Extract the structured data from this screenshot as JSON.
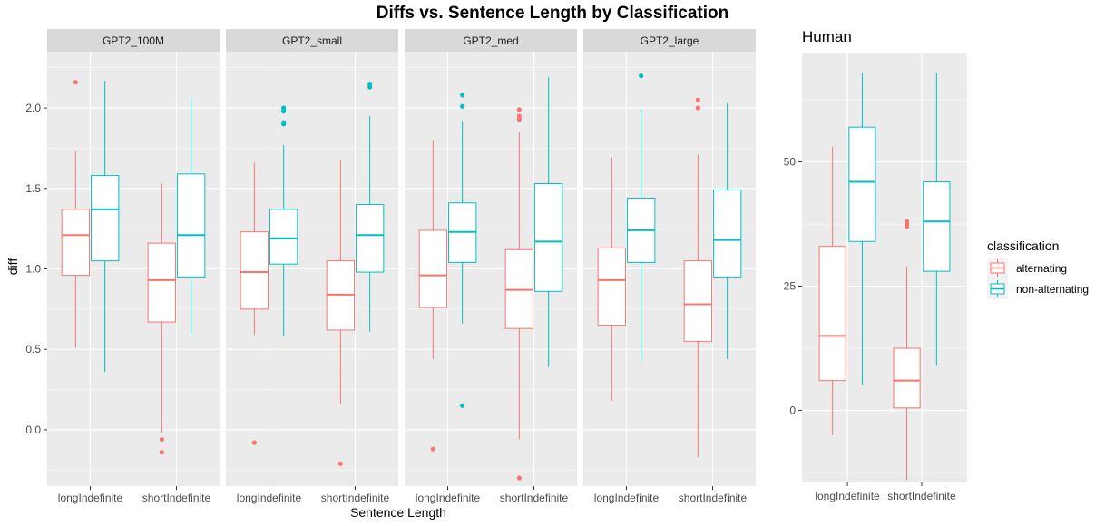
{
  "colors": {
    "alternating": "#F8766D",
    "non-alternating": "#00BFC4",
    "panel_bg": "#EBEBEB",
    "strip_bg": "#D9D9D9",
    "grid": "#FFFFFF"
  },
  "chart_data": [
    {
      "type": "boxplot",
      "title": "Diffs vs. Sentence Length by Classification",
      "xlabel": "Sentence Length",
      "ylabel": "diff",
      "ylim": [
        -0.35,
        2.35
      ],
      "yticks": [
        "0.0",
        "0.5",
        "1.0",
        "1.5",
        "2.0"
      ],
      "categories": [
        "longIndefinite",
        "shortIndefinite"
      ],
      "facets": [
        {
          "name": "GPT2_100M",
          "boxes": [
            {
              "category": "longIndefinite",
              "series": "alternating",
              "min": 0.51,
              "q1": 0.96,
              "median": 1.21,
              "q3": 1.37,
              "max": 1.73,
              "outliers": [
                2.16
              ]
            },
            {
              "category": "longIndefinite",
              "series": "non-alternating",
              "min": 0.36,
              "q1": 1.05,
              "median": 1.37,
              "q3": 1.58,
              "max": 2.17,
              "outliers": []
            },
            {
              "category": "shortIndefinite",
              "series": "alternating",
              "min": -0.02,
              "q1": 0.67,
              "median": 0.93,
              "q3": 1.16,
              "max": 1.53,
              "outliers": [
                -0.06,
                -0.14
              ]
            },
            {
              "category": "shortIndefinite",
              "series": "non-alternating",
              "min": 0.59,
              "q1": 0.95,
              "median": 1.21,
              "q3": 1.59,
              "max": 2.06,
              "outliers": []
            }
          ]
        },
        {
          "name": "GPT2_small",
          "boxes": [
            {
              "category": "longIndefinite",
              "series": "alternating",
              "min": 0.59,
              "q1": 0.75,
              "median": 0.98,
              "q3": 1.23,
              "max": 1.66,
              "outliers": [
                -0.08
              ]
            },
            {
              "category": "longIndefinite",
              "series": "non-alternating",
              "min": 0.58,
              "q1": 1.03,
              "median": 1.19,
              "q3": 1.37,
              "max": 1.77,
              "outliers": [
                1.9,
                1.91,
                1.98,
                2.0
              ]
            },
            {
              "category": "shortIndefinite",
              "series": "alternating",
              "min": 0.16,
              "q1": 0.62,
              "median": 0.84,
              "q3": 1.05,
              "max": 1.68,
              "outliers": [
                -0.21
              ]
            },
            {
              "category": "shortIndefinite",
              "series": "non-alternating",
              "min": 0.61,
              "q1": 0.98,
              "median": 1.21,
              "q3": 1.4,
              "max": 1.95,
              "outliers": [
                2.13,
                2.15
              ]
            }
          ]
        },
        {
          "name": "GPT2_med",
          "boxes": [
            {
              "category": "longIndefinite",
              "series": "alternating",
              "min": 0.44,
              "q1": 0.76,
              "median": 0.96,
              "q3": 1.24,
              "max": 1.8,
              "outliers": [
                -0.12
              ]
            },
            {
              "category": "longIndefinite",
              "series": "non-alternating",
              "min": 0.66,
              "q1": 1.04,
              "median": 1.23,
              "q3": 1.41,
              "max": 1.92,
              "outliers": [
                2.01,
                2.08,
                0.15
              ]
            },
            {
              "category": "shortIndefinite",
              "series": "alternating",
              "min": -0.06,
              "q1": 0.63,
              "median": 0.87,
              "q3": 1.12,
              "max": 1.85,
              "outliers": [
                1.93,
                1.95,
                1.99,
                -0.3
              ]
            },
            {
              "category": "shortIndefinite",
              "series": "non-alternating",
              "min": 0.39,
              "q1": 0.86,
              "median": 1.17,
              "q3": 1.53,
              "max": 2.19,
              "outliers": []
            }
          ]
        },
        {
          "name": "GPT2_large",
          "boxes": [
            {
              "category": "longIndefinite",
              "series": "alternating",
              "min": 0.18,
              "q1": 0.65,
              "median": 0.93,
              "q3": 1.13,
              "max": 1.69,
              "outliers": []
            },
            {
              "category": "longIndefinite",
              "series": "non-alternating",
              "min": 0.43,
              "q1": 1.04,
              "median": 1.24,
              "q3": 1.44,
              "max": 1.99,
              "outliers": [
                2.2
              ]
            },
            {
              "category": "shortIndefinite",
              "series": "alternating",
              "min": -0.17,
              "q1": 0.55,
              "median": 0.78,
              "q3": 1.05,
              "max": 1.71,
              "outliers": [
                2.0,
                2.05
              ]
            },
            {
              "category": "shortIndefinite",
              "series": "non-alternating",
              "min": 0.44,
              "q1": 0.95,
              "median": 1.18,
              "q3": 1.49,
              "max": 2.03,
              "outliers": []
            }
          ]
        }
      ]
    },
    {
      "type": "boxplot",
      "title": "Human",
      "ylim": [
        -14.5,
        72
      ],
      "yticks": [
        "0",
        "25",
        "50"
      ],
      "categories": [
        "longIndefinite",
        "shortIndefinite"
      ],
      "boxes": [
        {
          "category": "longIndefinite",
          "series": "alternating",
          "min": -5,
          "q1": 6,
          "median": 15,
          "q3": 33,
          "max": 53,
          "outliers": []
        },
        {
          "category": "longIndefinite",
          "series": "non-alternating",
          "min": 5,
          "q1": 34,
          "median": 46,
          "q3": 57,
          "max": 68,
          "outliers": []
        },
        {
          "category": "shortIndefinite",
          "series": "alternating",
          "min": -14,
          "q1": 0.5,
          "median": 6,
          "q3": 12.5,
          "max": 29,
          "outliers": [
            37,
            37.5,
            38
          ]
        },
        {
          "category": "shortIndefinite",
          "series": "non-alternating",
          "min": 9,
          "q1": 28,
          "median": 38,
          "q3": 46,
          "max": 68,
          "outliers": []
        }
      ]
    }
  ],
  "legend": {
    "title": "classification",
    "position": "right",
    "items": [
      {
        "label": "alternating",
        "color": "#F8766D"
      },
      {
        "label": "non-alternating",
        "color": "#00BFC4"
      }
    ]
  }
}
